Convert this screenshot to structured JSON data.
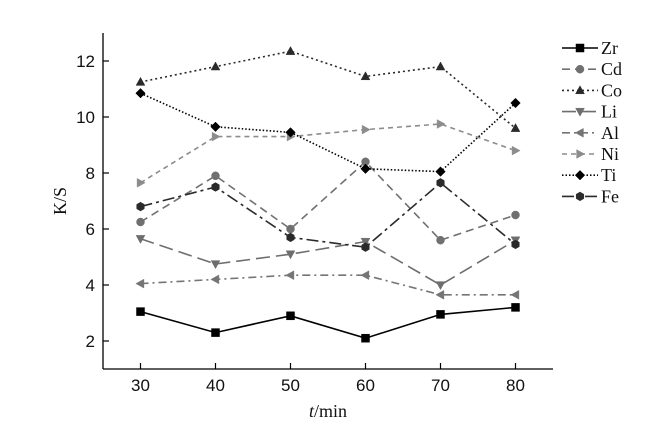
{
  "chart_data": {
    "type": "line",
    "x": [
      30,
      40,
      50,
      60,
      70,
      80
    ],
    "xlabel_italic": "t",
    "xlabel_unit": "/min",
    "ylabel": "K/S",
    "xlim": [
      25,
      85
    ],
    "ylim": [
      1,
      13
    ],
    "xticks": [
      30,
      40,
      50,
      60,
      70,
      80
    ],
    "yticks": [
      2,
      4,
      6,
      8,
      10,
      12
    ],
    "grid": false,
    "legend_position": "right",
    "series": [
      {
        "name": "Zr",
        "values": [
          3.05,
          2.3,
          2.9,
          2.1,
          2.95,
          3.2
        ],
        "color": "#000000",
        "marker": "square",
        "dash": "solid"
      },
      {
        "name": "Cd",
        "values": [
          6.25,
          7.9,
          6.0,
          8.4,
          5.6,
          6.5
        ],
        "color": "#707070",
        "marker": "circle",
        "dash": "dash"
      },
      {
        "name": "Co",
        "values": [
          11.25,
          11.8,
          12.35,
          11.45,
          11.8,
          9.6
        ],
        "color": "#2a2a2a",
        "marker": "triangle-up",
        "dash": "dot"
      },
      {
        "name": "Li",
        "values": [
          5.65,
          4.75,
          5.1,
          5.55,
          4.0,
          5.6
        ],
        "color": "#6e6e6e",
        "marker": "triangle-down",
        "dash": "longdash"
      },
      {
        "name": "Al",
        "values": [
          4.05,
          4.2,
          4.35,
          4.35,
          3.65,
          3.65
        ],
        "color": "#757575",
        "marker": "triangle-left",
        "dash": "dashdot"
      },
      {
        "name": "Ni",
        "values": [
          7.65,
          9.3,
          9.3,
          9.55,
          9.75,
          8.8
        ],
        "color": "#8c8c8c",
        "marker": "triangle-right",
        "dash": "shortdash"
      },
      {
        "name": "Ti",
        "values": [
          10.85,
          9.65,
          9.45,
          8.15,
          8.05,
          10.5
        ],
        "color": "#000000",
        "marker": "diamond",
        "dash": "densedot"
      },
      {
        "name": "Fe",
        "values": [
          6.8,
          7.5,
          5.7,
          5.35,
          7.65,
          5.45
        ],
        "color": "#2a2a2a",
        "marker": "hexagon",
        "dash": "dashdotlong"
      }
    ]
  }
}
